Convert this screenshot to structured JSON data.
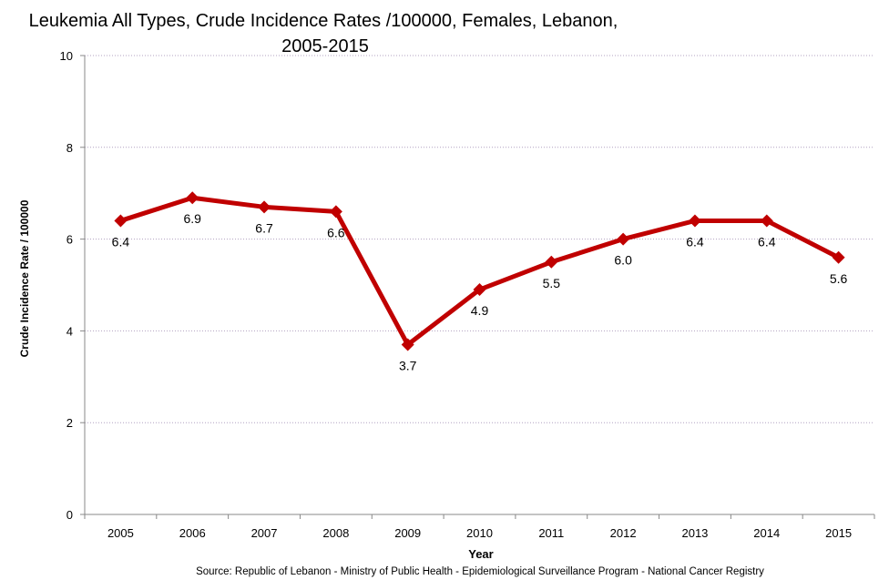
{
  "chart_data": {
    "type": "line",
    "title_line1": "Leukemia All Types, Crude Incidence Rates /100000,  Females, Lebanon,",
    "title_line2": "2005-2015",
    "xlabel": "Year",
    "ylabel": "Crude Incidence Rate / 100000",
    "source": "Source:  Republic of Lebanon - Ministry of Public Health - Epidemiological Surveillance Program - National Cancer Registry",
    "categories": [
      "2005",
      "2006",
      "2007",
      "2008",
      "2009",
      "2010",
      "2011",
      "2012",
      "2013",
      "2014",
      "2015"
    ],
    "series": [
      {
        "name": "Females",
        "values": [
          6.4,
          6.9,
          6.7,
          6.6,
          3.7,
          4.9,
          5.5,
          6.0,
          6.4,
          6.4,
          5.6
        ],
        "color": "#C00000"
      }
    ],
    "data_labels": [
      "6.4",
      "6.9",
      "6.7",
      "6.6",
      "3.7",
      "4.9",
      "5.5",
      "6.0",
      "6.4",
      "6.4",
      "5.6"
    ],
    "ylim": [
      0,
      10
    ],
    "yticks": [
      "0",
      "2",
      "4",
      "6",
      "8",
      "10"
    ],
    "grid": true,
    "legend": "none"
  }
}
